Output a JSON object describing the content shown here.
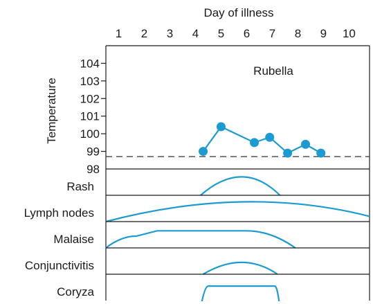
{
  "chart_data": {
    "type": "line",
    "title": "Rubella",
    "xlabel": "Day of illness",
    "ylabel": "Temperature",
    "x_ticks": [
      1,
      2,
      3,
      4,
      5,
      6,
      7,
      8,
      9,
      10
    ],
    "xlim": [
      0.5,
      10.8
    ],
    "y_ticks": [
      98,
      99,
      100,
      101,
      102,
      103,
      104
    ],
    "ylim": [
      98,
      105
    ],
    "reference_line": {
      "y": 98.7,
      "style": "dashed"
    },
    "series": [
      {
        "x": [
          4.3,
          5.0,
          6.3,
          6.9,
          7.6,
          8.3,
          8.9
        ],
        "y": [
          99.0,
          100.4,
          99.5,
          99.8,
          98.9,
          99.4,
          98.9
        ]
      }
    ],
    "symptoms": [
      {
        "name": "Rash",
        "curve": [
          [
            4.2,
            0.0
          ],
          [
            5.8,
            0.7
          ],
          [
            7.3,
            0.0
          ]
        ]
      },
      {
        "name": "Lymph nodes",
        "curve": [
          [
            0.5,
            0.0
          ],
          [
            5.8,
            0.75
          ],
          [
            10.8,
            0.2
          ]
        ]
      },
      {
        "name": "Malaise",
        "curve": [
          [
            0.5,
            0.0
          ],
          [
            1.7,
            0.45
          ],
          [
            2.5,
            0.65
          ],
          [
            6.0,
            0.65
          ],
          [
            7.9,
            0.0
          ]
        ]
      },
      {
        "name": "Conjunctivitis",
        "curve": [
          [
            4.3,
            0.0
          ],
          [
            5.8,
            0.45
          ],
          [
            7.2,
            0.0
          ]
        ]
      },
      {
        "name": "Coryza",
        "curve": [
          [
            4.2,
            -0.3
          ],
          [
            4.5,
            0.55
          ],
          [
            7.1,
            0.55
          ],
          [
            7.3,
            -0.3
          ]
        ]
      }
    ],
    "colors": {
      "series": "#1b9bd1",
      "axis": "#1a1a1a",
      "reference": "#444444"
    }
  }
}
